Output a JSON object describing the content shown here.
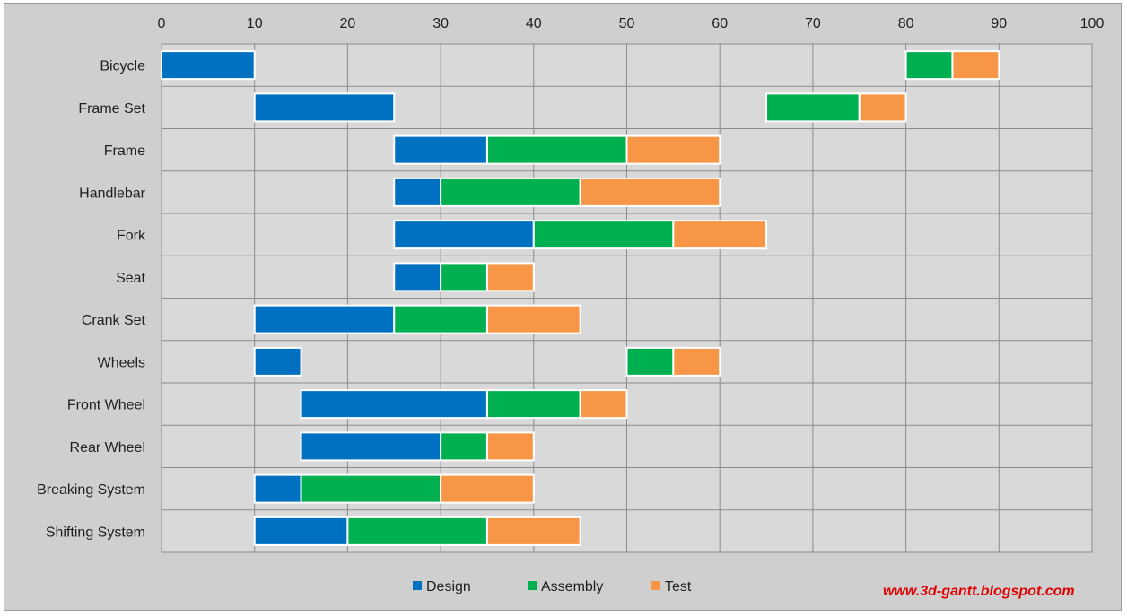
{
  "chart_data": {
    "type": "bar",
    "orientation": "horizontal",
    "stacked": true,
    "title": "",
    "xlabel": "",
    "ylabel": "",
    "xlim": [
      0,
      100
    ],
    "x_ticks": [
      0,
      10,
      20,
      30,
      40,
      50,
      60,
      70,
      80,
      90,
      100
    ],
    "axis_position": "top",
    "grid": true,
    "legend_position": "bottom",
    "categories": [
      "Bicycle",
      "Frame Set",
      "Frame",
      "Handlebar",
      "Fork",
      "Seat",
      "Crank Set",
      "Wheels",
      "Front Wheel",
      "Rear Wheel",
      "Breaking System",
      "Shifting System"
    ],
    "series": [
      {
        "name": "Design",
        "color": "#0070C0",
        "segments": [
          [
            0,
            10
          ],
          [
            10,
            25
          ],
          [
            25,
            35
          ],
          [
            25,
            30
          ],
          [
            25,
            40
          ],
          [
            25,
            30
          ],
          [
            10,
            25
          ],
          [
            10,
            15
          ],
          [
            15,
            35
          ],
          [
            15,
            30
          ],
          [
            10,
            15
          ],
          [
            10,
            20
          ]
        ]
      },
      {
        "name": "Assembly",
        "color": "#00B050",
        "segments": [
          [
            80,
            85
          ],
          [
            65,
            75
          ],
          [
            35,
            50
          ],
          [
            30,
            45
          ],
          [
            40,
            55
          ],
          [
            30,
            35
          ],
          [
            25,
            35
          ],
          [
            50,
            55
          ],
          [
            35,
            45
          ],
          [
            30,
            35
          ],
          [
            15,
            30
          ],
          [
            20,
            35
          ]
        ]
      },
      {
        "name": "Test",
        "color": "#F79646",
        "segments": [
          [
            85,
            90
          ],
          [
            75,
            80
          ],
          [
            50,
            60
          ],
          [
            45,
            60
          ],
          [
            55,
            65
          ],
          [
            35,
            40
          ],
          [
            35,
            45
          ],
          [
            55,
            60
          ],
          [
            45,
            50
          ],
          [
            35,
            40
          ],
          [
            30,
            40
          ],
          [
            35,
            45
          ]
        ]
      }
    ]
  },
  "watermark": "www.3d-gantt.blogspot.com"
}
